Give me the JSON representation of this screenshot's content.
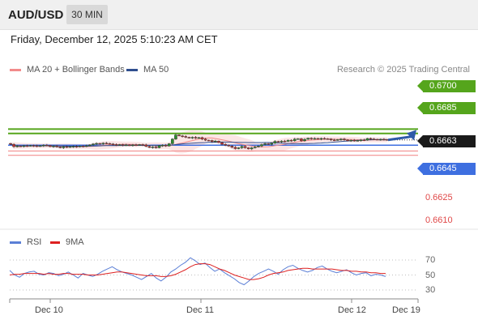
{
  "header": {
    "symbol": "AUD/USD",
    "timeframe": "30 MIN",
    "datetime": "Friday, December 12, 2025 5:10:23 AM CET"
  },
  "legend": {
    "ma20_label": "MA 20 + Bollinger Bands",
    "ma50_label": "MA 50",
    "copyright": "Research © 2025 Trading Central",
    "rsi_label": "RSI",
    "rsi_ma_label": "9MA"
  },
  "colors": {
    "resistance": "#55a51c",
    "support": "#3e6fe0",
    "ma20": "#f28b8b",
    "ma50": "#2f4f8f",
    "bollinger_fill": "#fde3e3",
    "candle_up": "#2e8a2e",
    "candle_down": "#c43030",
    "arrow": "#2e5aa8",
    "rsi": "#5b7fd6",
    "rsi_ma": "#dd2020",
    "target_line": "#f08080"
  },
  "levels": {
    "resistance_2": "0.6700",
    "resistance_1": "0.6685",
    "current": "0.6663",
    "pivot": "0.6645",
    "support_1": "0.6625",
    "support_2": "0.6610"
  },
  "rsi_axis": {
    "ticks": [
      "70",
      "50",
      "30"
    ]
  },
  "x_axis": {
    "labels": [
      "Dec 10",
      "Dec 11",
      "Dec 12",
      "Dec 19"
    ]
  },
  "chart_data": {
    "type": "candlestick",
    "instrument": "AUD/USD",
    "interval": "30 MIN",
    "y_range": [
      0.6605,
      0.6705
    ],
    "closes": [
      0.6648,
      0.664,
      0.6642,
      0.6641,
      0.6643,
      0.6642,
      0.6644,
      0.6643,
      0.6641,
      0.6643,
      0.6645,
      0.6644,
      0.664,
      0.6642,
      0.6639,
      0.6636,
      0.664,
      0.6638,
      0.664,
      0.6641,
      0.6639,
      0.6642,
      0.6641,
      0.6643,
      0.6646,
      0.6649,
      0.6651,
      0.665,
      0.6652,
      0.6651,
      0.6649,
      0.6647,
      0.6645,
      0.6647,
      0.6645,
      0.6646,
      0.6644,
      0.6646,
      0.6645,
      0.6647,
      0.6646,
      0.6641,
      0.6637,
      0.6639,
      0.6636,
      0.6643,
      0.6645,
      0.6642,
      0.665,
      0.6666,
      0.668,
      0.6677,
      0.6675,
      0.6672,
      0.667,
      0.6672,
      0.6669,
      0.6671,
      0.6666,
      0.6662,
      0.6661,
      0.6657,
      0.6659,
      0.6654,
      0.6648,
      0.6645,
      0.6642,
      0.6638,
      0.6633,
      0.6636,
      0.6641,
      0.6636,
      0.6632,
      0.6636,
      0.6639,
      0.6642,
      0.6647,
      0.665,
      0.6648,
      0.6652,
      0.6658,
      0.6656,
      0.6659,
      0.6658,
      0.6662,
      0.666,
      0.6666,
      0.6667,
      0.666,
      0.6665,
      0.6669,
      0.6667,
      0.6668,
      0.6666,
      0.6668,
      0.6667,
      0.6666,
      0.6663,
      0.6662,
      0.6664,
      0.6666,
      0.6663,
      0.666,
      0.6662,
      0.666,
      0.6661,
      0.6663,
      0.6662,
      0.6668,
      0.6666,
      0.6665,
      0.6664,
      0.6665,
      0.6664,
      0.6663
    ],
    "projected_path": [
      0.6663,
      0.67
    ],
    "rsi": {
      "range": [
        20,
        80
      ],
      "ticks": [
        70,
        50,
        30
      ],
      "rsi_values": [
        56,
        50,
        47,
        52,
        54,
        55,
        51,
        50,
        53,
        52,
        49,
        51,
        54,
        50,
        46,
        52,
        50,
        48,
        51,
        55,
        58,
        61,
        57,
        54,
        52,
        50,
        47,
        44,
        48,
        52,
        46,
        42,
        47,
        54,
        58,
        63,
        67,
        73,
        69,
        64,
        66,
        60,
        55,
        58,
        53,
        49,
        45,
        40,
        37,
        42,
        48,
        52,
        55,
        58,
        55,
        51,
        57,
        61,
        63,
        59,
        56,
        54,
        56,
        60,
        62,
        58,
        55,
        53,
        55,
        57,
        53,
        50,
        52,
        53,
        49,
        51,
        50,
        48
      ],
      "ma_values": [
        50,
        51,
        51,
        52,
        52,
        52,
        52,
        51,
        52,
        51,
        51,
        52,
        52,
        51,
        51,
        51,
        50,
        50,
        50,
        51,
        52,
        53,
        54,
        54,
        53,
        52,
        51,
        50,
        49,
        49,
        49,
        48,
        48,
        49,
        51,
        54,
        57,
        61,
        64,
        65,
        65,
        64,
        61,
        58,
        56,
        53,
        50,
        48,
        46,
        44,
        44,
        45,
        47,
        50,
        52,
        53,
        54,
        56,
        57,
        58,
        59,
        59,
        58,
        58,
        58,
        58,
        58,
        57,
        56,
        56,
        55,
        55,
        54,
        54,
        53,
        53,
        52,
        52
      ]
    },
    "x_labels": [
      "Dec 10",
      "Dec 11",
      "Dec 12",
      "Dec 19"
    ]
  }
}
